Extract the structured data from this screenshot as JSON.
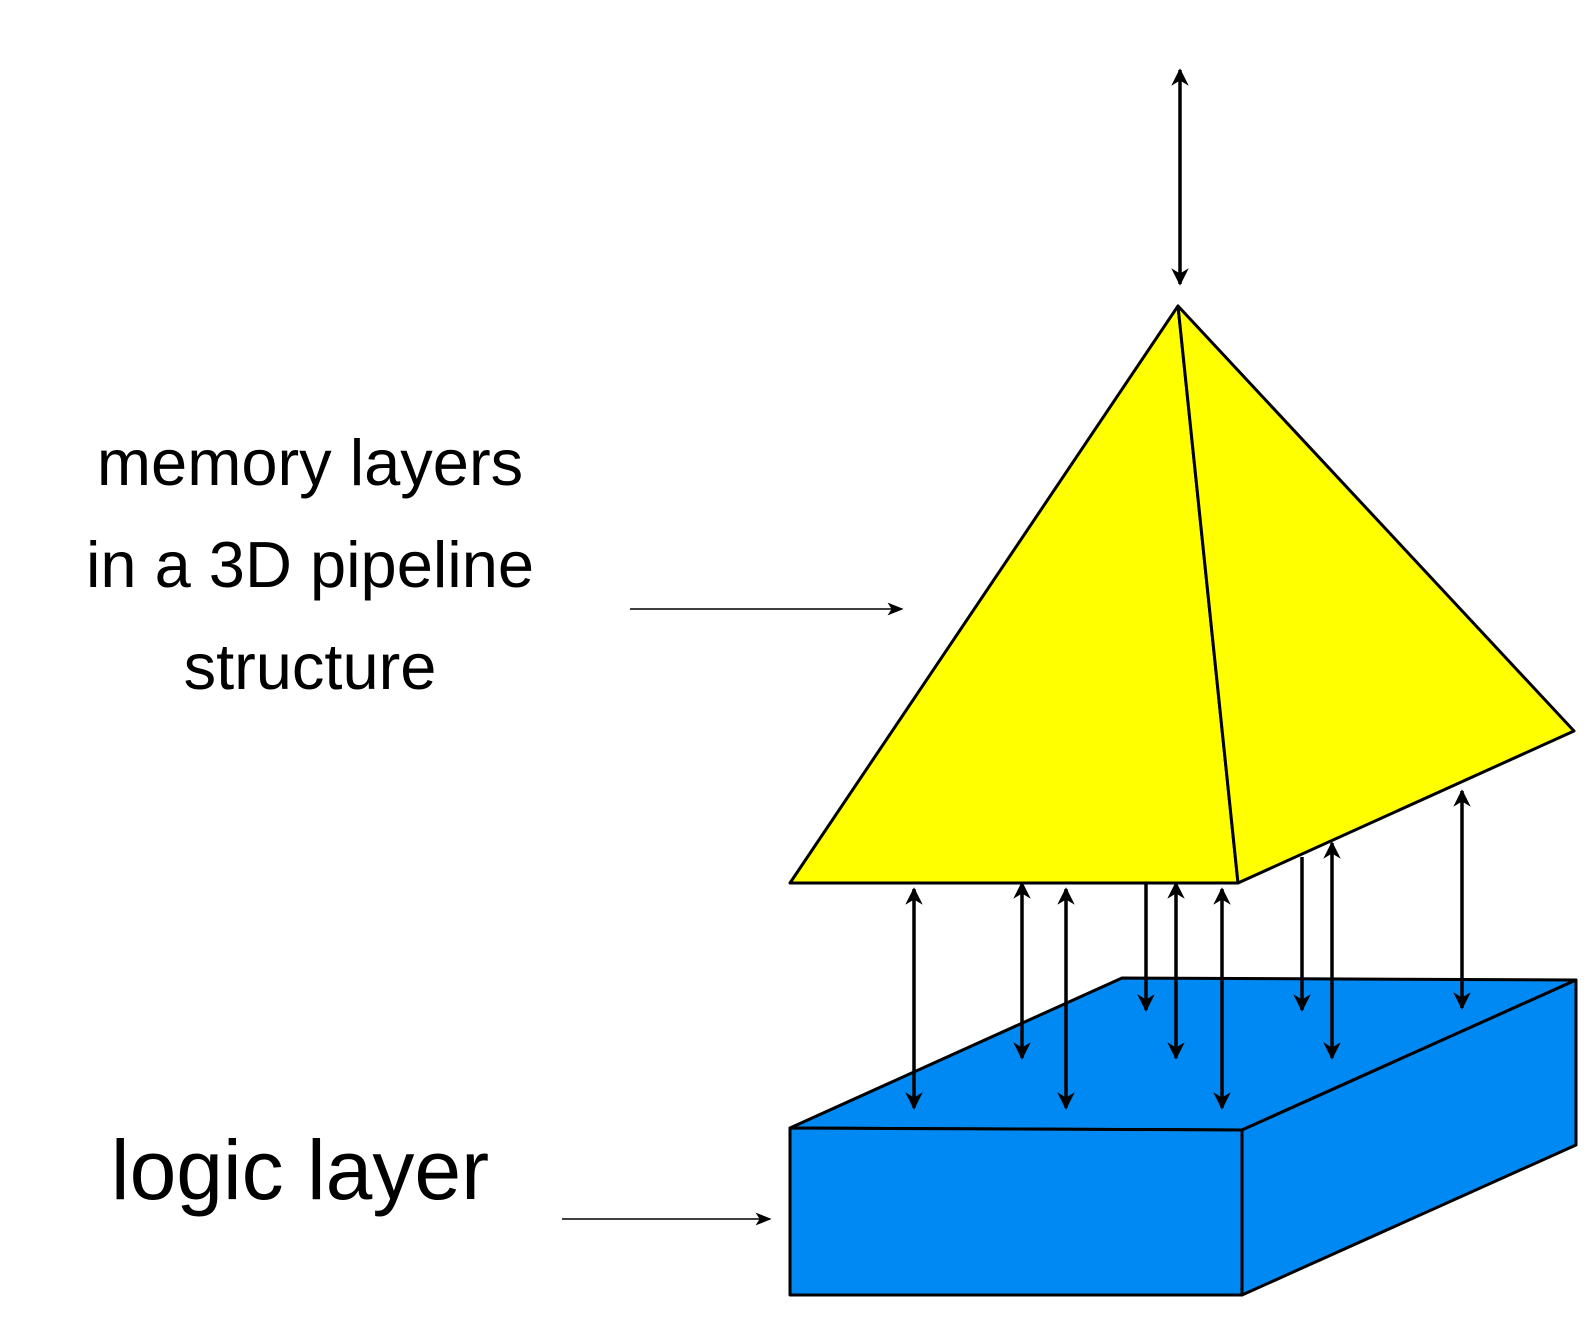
{
  "labels": {
    "memory_line1": "memory layers",
    "memory_line2": "in a 3D pipeline",
    "memory_line3": "structure",
    "logic": "logic layer"
  },
  "colors": {
    "pyramid_fill": "#ffff00",
    "block_fill": "#0089f2",
    "stroke": "#000000",
    "background": "#ffffff"
  }
}
